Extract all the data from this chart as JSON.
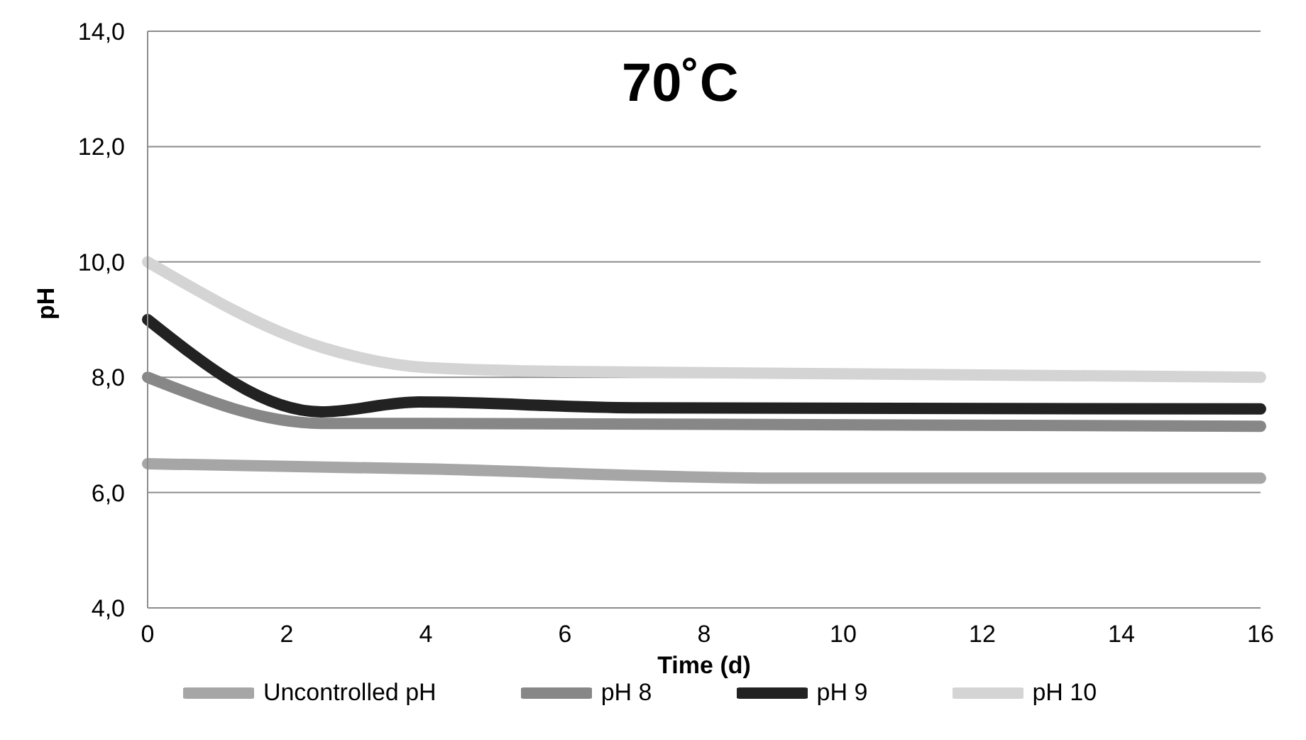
{
  "chart_data": {
    "type": "line",
    "title": "70˚C",
    "xlabel": "Time (d)",
    "ylabel": "pH",
    "xlim": [
      0,
      16
    ],
    "xticks": [
      0,
      2,
      4,
      6,
      8,
      10,
      12,
      14,
      16
    ],
    "ylim": [
      4,
      14
    ],
    "yticks": [
      {
        "value": 4,
        "label": "4,0"
      },
      {
        "value": 6,
        "label": "6,0"
      },
      {
        "value": 8,
        "label": "8,0"
      },
      {
        "value": 10,
        "label": "10,0"
      },
      {
        "value": 12,
        "label": "12,0"
      },
      {
        "value": 14,
        "label": "14,0"
      }
    ],
    "grid": "y",
    "legend": "bottom",
    "marker": "none",
    "line_style": "solid",
    "series": [
      {
        "name": "Uncontrolled pH",
        "color": "#a6a6a6",
        "x": [
          0,
          4,
          9,
          16
        ],
        "values": [
          6.5,
          6.41,
          6.25,
          6.25
        ]
      },
      {
        "name": "pH 8",
        "color": "#878787",
        "x": [
          0,
          2.5,
          4,
          16
        ],
        "values": [
          8.0,
          7.2,
          7.2,
          7.15
        ]
      },
      {
        "name": "pH 9",
        "color": "#222222",
        "x": [
          0,
          2.5,
          3.9,
          7,
          16
        ],
        "values": [
          9.0,
          7.4,
          7.57,
          7.47,
          7.45
        ]
      },
      {
        "name": "pH 10",
        "color": "#d4d4d4",
        "x": [
          0,
          2.5,
          4,
          6,
          16
        ],
        "values": [
          10.0,
          8.52,
          8.17,
          8.1,
          8.0
        ]
      }
    ]
  }
}
